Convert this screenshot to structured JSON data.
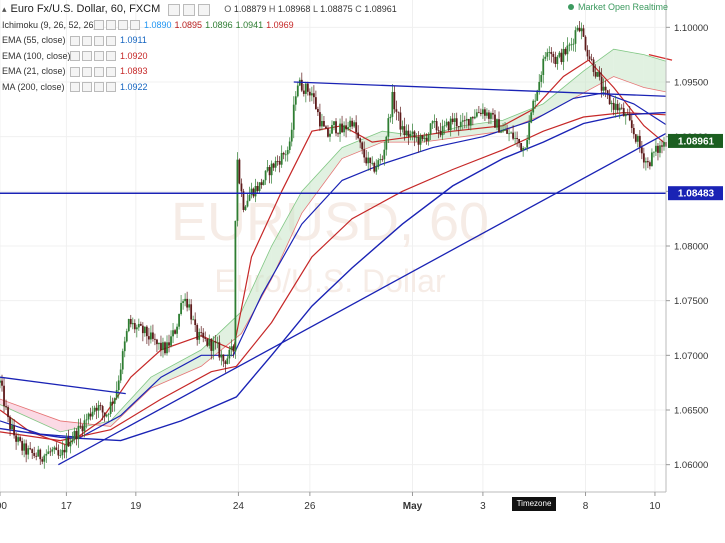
{
  "header": {
    "title": "Euro Fx/U.S. Dollar, 60, FXCM",
    "ohlc": [
      {
        "k": "O",
        "v": "1.08879"
      },
      {
        "k": "H",
        "v": "1.08968"
      },
      {
        "k": "L",
        "v": "1.08875"
      },
      {
        "k": "C",
        "v": "1.08961"
      }
    ],
    "status": "Market Open Realtime",
    "status_color": "#3c9a5f"
  },
  "indicators": [
    {
      "label": "Ichimoku (9, 26, 52, 26)",
      "values": [
        {
          "v": "1.0890",
          "color": "#2196f3"
        },
        {
          "v": "1.0895",
          "color": "#b71c1c"
        },
        {
          "v": "1.0896",
          "color": "#2e7d32"
        },
        {
          "v": "1.0941",
          "color": "#2e7d32"
        },
        {
          "v": "1.0969",
          "color": "#c62828"
        }
      ]
    },
    {
      "label": "EMA (55, close)",
      "values": [
        {
          "v": "1.0911",
          "color": "#1565c0"
        }
      ]
    },
    {
      "label": "EMA (100, close)",
      "values": [
        {
          "v": "1.0920",
          "color": "#c62828"
        }
      ]
    },
    {
      "label": "EMA (21, close)",
      "values": [
        {
          "v": "1.0893",
          "color": "#c62828"
        }
      ]
    },
    {
      "label": "MA (200, close)",
      "values": [
        {
          "v": "1.0922",
          "color": "#1565c0"
        }
      ]
    }
  ],
  "timezone_button": "Timezone",
  "chart_data": {
    "type": "candlestick",
    "symbol": "EURUSD",
    "ylim": [
      1.0575,
      1.1025
    ],
    "y_ticks": [
      "1.10000",
      "1.09500",
      "1.09000",
      "1.08500",
      "1.08000",
      "1.07500",
      "1.07000",
      "1.06500",
      "1.06000"
    ],
    "y_tick_values": [
      1.1,
      1.095,
      1.09,
      1.085,
      1.08,
      1.075,
      1.07,
      1.065,
      1.06
    ],
    "x_ticks": [
      ":00",
      "17",
      "19",
      "24",
      "26",
      "May",
      "3",
      "8",
      "10"
    ],
    "x_tick_index": [
      0,
      66,
      135,
      237,
      308,
      410,
      480,
      582,
      651
    ],
    "x_total": 662,
    "price_badges": [
      {
        "value": "1.08961",
        "type": "last",
        "color": "#1b5e20"
      },
      {
        "value": "1.08483",
        "type": "horizontal-line",
        "color": "#1a23b5"
      }
    ],
    "horizontal_level": 1.08483,
    "close_path": [
      [
        0,
        1.0675
      ],
      [
        8,
        1.064
      ],
      [
        15,
        1.0625
      ],
      [
        22,
        1.0615
      ],
      [
        30,
        1.061
      ],
      [
        40,
        1.0608
      ],
      [
        52,
        1.0612
      ],
      [
        60,
        1.0605
      ],
      [
        66,
        1.062
      ],
      [
        75,
        1.0628
      ],
      [
        85,
        1.064
      ],
      [
        95,
        1.0655
      ],
      [
        105,
        1.0645
      ],
      [
        115,
        1.0665
      ],
      [
        122,
        1.07
      ],
      [
        128,
        1.073
      ],
      [
        135,
        1.0725
      ],
      [
        145,
        1.072
      ],
      [
        155,
        1.071
      ],
      [
        165,
        1.0705
      ],
      [
        175,
        1.0725
      ],
      [
        182,
        1.0755
      ],
      [
        188,
        1.0745
      ],
      [
        195,
        1.0718
      ],
      [
        205,
        1.0712
      ],
      [
        215,
        1.0708
      ],
      [
        222,
        1.0695
      ],
      [
        228,
        1.07
      ],
      [
        232,
        1.0705
      ],
      [
        235,
        1.089
      ],
      [
        238,
        1.086
      ],
      [
        242,
        1.0838
      ],
      [
        250,
        1.085
      ],
      [
        258,
        1.0855
      ],
      [
        268,
        1.087
      ],
      [
        278,
        1.088
      ],
      [
        288,
        1.089
      ],
      [
        295,
        1.095
      ],
      [
        302,
        1.0945
      ],
      [
        310,
        1.094
      ],
      [
        318,
        1.0915
      ],
      [
        325,
        1.09
      ],
      [
        332,
        1.091
      ],
      [
        340,
        1.0905
      ],
      [
        350,
        1.0915
      ],
      [
        360,
        1.0885
      ],
      [
        370,
        1.087
      ],
      [
        380,
        1.088
      ],
      [
        390,
        1.0935
      ],
      [
        400,
        1.0905
      ],
      [
        410,
        1.09
      ],
      [
        420,
        1.0895
      ],
      [
        430,
        1.091
      ],
      [
        440,
        1.0905
      ],
      [
        450,
        1.0915
      ],
      [
        460,
        1.091
      ],
      [
        470,
        1.092
      ],
      [
        480,
        1.0925
      ],
      [
        490,
        1.0915
      ],
      [
        500,
        1.0905
      ],
      [
        510,
        1.09
      ],
      [
        520,
        1.089
      ],
      [
        525,
        1.0905
      ],
      [
        530,
        1.093
      ],
      [
        538,
        1.096
      ],
      [
        545,
        1.0985
      ],
      [
        552,
        1.097
      ],
      [
        560,
        1.0975
      ],
      [
        568,
        1.0985
      ],
      [
        575,
        1.1005
      ],
      [
        580,
        1.099
      ],
      [
        585,
        1.0975
      ],
      [
        592,
        1.096
      ],
      [
        600,
        1.094
      ],
      [
        608,
        1.093
      ],
      [
        616,
        1.0925
      ],
      [
        624,
        1.0915
      ],
      [
        632,
        1.09
      ],
      [
        638,
        1.0885
      ],
      [
        644,
        1.0875
      ],
      [
        650,
        1.0885
      ],
      [
        656,
        1.089
      ],
      [
        662,
        1.0896
      ]
    ],
    "series": [
      {
        "name": "EMA (21, close)",
        "color": "#c62828",
        "width": 1.2,
        "points": [
          [
            0,
            1.065
          ],
          [
            30,
            1.063
          ],
          [
            66,
            1.0618
          ],
          [
            100,
            1.064
          ],
          [
            130,
            1.068
          ],
          [
            160,
            1.0705
          ],
          [
            200,
            1.0718
          ],
          [
            232,
            1.0705
          ],
          [
            250,
            1.079
          ],
          [
            280,
            1.085
          ],
          [
            310,
            1.0905
          ],
          [
            340,
            1.091
          ],
          [
            370,
            1.0895
          ],
          [
            410,
            1.09
          ],
          [
            450,
            1.0905
          ],
          [
            500,
            1.091
          ],
          [
            530,
            1.0925
          ],
          [
            560,
            1.0955
          ],
          [
            585,
            1.097
          ],
          [
            610,
            1.0945
          ],
          [
            640,
            1.091
          ],
          [
            662,
            1.0893
          ]
        ]
      },
      {
        "name": "EMA (55, close)",
        "color": "#1a23b5",
        "width": 1.2,
        "points": [
          [
            0,
            1.064
          ],
          [
            40,
            1.0628
          ],
          [
            80,
            1.0625
          ],
          [
            120,
            1.0645
          ],
          [
            160,
            1.068
          ],
          [
            200,
            1.07
          ],
          [
            232,
            1.07
          ],
          [
            260,
            1.0755
          ],
          [
            300,
            1.082
          ],
          [
            340,
            1.086
          ],
          [
            380,
            1.0875
          ],
          [
            430,
            1.089
          ],
          [
            480,
            1.09
          ],
          [
            530,
            1.0915
          ],
          [
            570,
            1.0935
          ],
          [
            600,
            1.094
          ],
          [
            630,
            1.093
          ],
          [
            662,
            1.0911
          ]
        ]
      },
      {
        "name": "EMA (100, close)",
        "color": "#c62828",
        "width": 1.2,
        "points": [
          [
            0,
            1.063
          ],
          [
            60,
            1.0622
          ],
          [
            110,
            1.0632
          ],
          [
            160,
            1.066
          ],
          [
            210,
            1.0685
          ],
          [
            235,
            1.069
          ],
          [
            270,
            1.073
          ],
          [
            310,
            1.079
          ],
          [
            350,
            1.0825
          ],
          [
            400,
            1.085
          ],
          [
            450,
            1.087
          ],
          [
            500,
            1.0888
          ],
          [
            540,
            1.0905
          ],
          [
            580,
            1.0918
          ],
          [
            620,
            1.0922
          ],
          [
            662,
            1.092
          ]
        ]
      },
      {
        "name": "MA (200, close)",
        "color": "#1a23b5",
        "width": 1.4,
        "points": [
          [
            0,
            1.0633
          ],
          [
            60,
            1.0625
          ],
          [
            120,
            1.0622
          ],
          [
            180,
            1.064
          ],
          [
            235,
            1.0662
          ],
          [
            270,
            1.07
          ],
          [
            310,
            1.0745
          ],
          [
            350,
            1.078
          ],
          [
            400,
            1.082
          ],
          [
            450,
            1.0855
          ],
          [
            500,
            1.088
          ],
          [
            540,
            1.0895
          ],
          [
            580,
            1.0912
          ],
          [
            620,
            1.092
          ],
          [
            662,
            1.0922
          ]
        ]
      }
    ],
    "trendlines": [
      {
        "color": "#1a23b5",
        "points": [
          [
            0,
            1.068
          ],
          [
            125,
            1.0665
          ]
        ]
      },
      {
        "color": "#1a23b5",
        "points": [
          [
            58,
            1.06
          ],
          [
            662,
            1.0903
          ]
        ]
      },
      {
        "color": "#1a23b5",
        "points": [
          [
            292,
            1.095
          ],
          [
            662,
            1.0937
          ]
        ]
      },
      {
        "color": "#d32f2f",
        "points": [
          [
            645,
            1.0975
          ],
          [
            668,
            1.097
          ]
        ]
      }
    ],
    "cloud": {
      "fill_bull": "#c8e6c9",
      "fill_bear": "#f8bbd0",
      "span_a": [
        [
          0,
          1.0655
        ],
        [
          60,
          1.063
        ],
        [
          110,
          1.064
        ],
        [
          150,
          1.068
        ],
        [
          200,
          1.0705
        ],
        [
          240,
          1.074
        ],
        [
          270,
          1.08
        ],
        [
          300,
          1.085
        ],
        [
          340,
          1.089
        ],
        [
          380,
          1.0905
        ],
        [
          420,
          1.09
        ],
        [
          460,
          1.091
        ],
        [
          500,
          1.0915
        ],
        [
          540,
          1.093
        ],
        [
          580,
          1.096
        ],
        [
          610,
          1.098
        ],
        [
          640,
          1.0975
        ],
        [
          662,
          1.0969
        ]
      ],
      "span_b": [
        [
          0,
          1.066
        ],
        [
          60,
          1.064
        ],
        [
          110,
          1.0635
        ],
        [
          150,
          1.067
        ],
        [
          200,
          1.069
        ],
        [
          240,
          1.072
        ],
        [
          270,
          1.077
        ],
        [
          300,
          1.083
        ],
        [
          340,
          1.088
        ],
        [
          380,
          1.0895
        ],
        [
          420,
          1.0895
        ],
        [
          460,
          1.09
        ],
        [
          500,
          1.0905
        ],
        [
          540,
          1.092
        ],
        [
          580,
          1.094
        ],
        [
          610,
          1.0955
        ],
        [
          640,
          1.0945
        ],
        [
          662,
          1.0941
        ]
      ]
    }
  }
}
